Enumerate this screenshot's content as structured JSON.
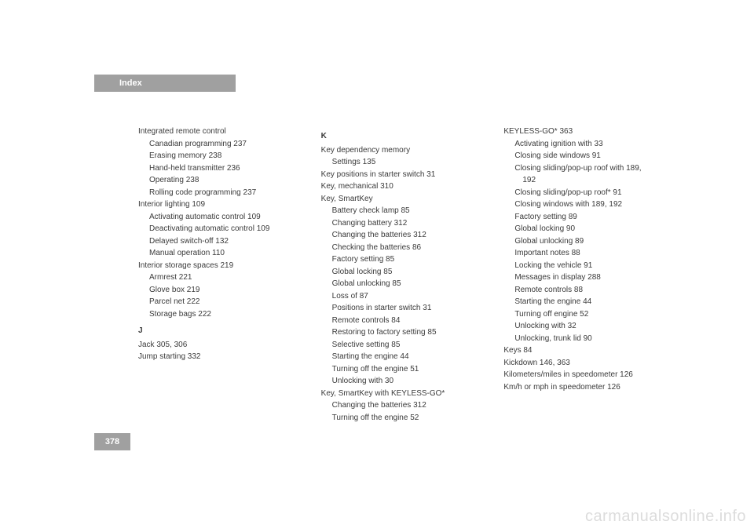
{
  "header": {
    "label": "Index"
  },
  "page_number": "378",
  "watermark": "carmanualsonline.info",
  "col1": [
    {
      "cls": "entry",
      "t": "Integrated remote control"
    },
    {
      "cls": "sub",
      "t": "Canadian programming 237"
    },
    {
      "cls": "sub",
      "t": "Erasing memory 238"
    },
    {
      "cls": "sub",
      "t": "Hand-held transmitter 236"
    },
    {
      "cls": "sub",
      "t": "Operating 238"
    },
    {
      "cls": "sub",
      "t": "Rolling code programming 237"
    },
    {
      "cls": "entry",
      "t": "Interior lighting 109"
    },
    {
      "cls": "sub",
      "t": "Activating automatic control 109"
    },
    {
      "cls": "sub",
      "t": "Deactivating automatic control 109"
    },
    {
      "cls": "sub",
      "t": "Delayed switch-off 132"
    },
    {
      "cls": "sub",
      "t": "Manual operation 110"
    },
    {
      "cls": "entry",
      "t": "Interior storage spaces 219"
    },
    {
      "cls": "sub",
      "t": "Armrest 221"
    },
    {
      "cls": "sub",
      "t": "Glove box 219"
    },
    {
      "cls": "sub",
      "t": "Parcel net 222"
    },
    {
      "cls": "sub",
      "t": "Storage bags 222"
    },
    {
      "cls": "letter",
      "t": "J"
    },
    {
      "cls": "entry",
      "t": "Jack 305, 306"
    },
    {
      "cls": "entry",
      "t": "Jump starting 332"
    }
  ],
  "col2": [
    {
      "cls": "letter",
      "t": "K"
    },
    {
      "cls": "entry",
      "t": "Key dependency memory"
    },
    {
      "cls": "sub",
      "t": "Settings 135"
    },
    {
      "cls": "entry",
      "t": "Key positions in starter switch 31"
    },
    {
      "cls": "entry",
      "t": "Key, mechanical 310"
    },
    {
      "cls": "entry",
      "t": "Key, SmartKey"
    },
    {
      "cls": "sub",
      "t": "Battery check lamp 85"
    },
    {
      "cls": "sub",
      "t": "Changing battery 312"
    },
    {
      "cls": "sub",
      "t": "Changing the batteries 312"
    },
    {
      "cls": "sub",
      "t": "Checking the batteries 86"
    },
    {
      "cls": "sub",
      "t": "Factory setting 85"
    },
    {
      "cls": "sub",
      "t": "Global locking 85"
    },
    {
      "cls": "sub",
      "t": "Global unlocking 85"
    },
    {
      "cls": "sub",
      "t": "Loss of 87"
    },
    {
      "cls": "sub",
      "t": "Positions in starter switch 31"
    },
    {
      "cls": "sub",
      "t": "Remote controls 84"
    },
    {
      "cls": "sub",
      "t": "Restoring to factory setting 85"
    },
    {
      "cls": "sub",
      "t": "Selective setting 85"
    },
    {
      "cls": "sub",
      "t": "Starting the engine 44"
    },
    {
      "cls": "sub",
      "t": "Turning off the engine 51"
    },
    {
      "cls": "sub",
      "t": "Unlocking with 30"
    },
    {
      "cls": "entry",
      "t": "Key, SmartKey with KEYLESS-GO*"
    },
    {
      "cls": "sub",
      "t": "Changing the batteries 312"
    },
    {
      "cls": "sub",
      "t": "Turning off the engine 52"
    }
  ],
  "col3": [
    {
      "cls": "entry",
      "t": "KEYLESS-GO* 363"
    },
    {
      "cls": "sub",
      "t": "Activating ignition with 33"
    },
    {
      "cls": "sub",
      "t": "Closing side windows 91"
    },
    {
      "cls": "sub",
      "t": "Closing sliding/pop-up roof with 189,"
    },
    {
      "cls": "subsub",
      "t": "192"
    },
    {
      "cls": "sub",
      "t": "Closing sliding/pop-up roof* 91"
    },
    {
      "cls": "sub",
      "t": "Closing windows with 189, 192"
    },
    {
      "cls": "sub",
      "t": "Factory setting 89"
    },
    {
      "cls": "sub",
      "t": "Global locking 90"
    },
    {
      "cls": "sub",
      "t": "Global unlocking 89"
    },
    {
      "cls": "sub",
      "t": "Important notes 88"
    },
    {
      "cls": "sub",
      "t": "Locking the vehicle 91"
    },
    {
      "cls": "sub",
      "t": "Messages in display 288"
    },
    {
      "cls": "sub",
      "t": "Remote controls 88"
    },
    {
      "cls": "sub",
      "t": "Starting the engine 44"
    },
    {
      "cls": "sub",
      "t": "Turning off engine 52"
    },
    {
      "cls": "sub",
      "t": "Unlocking with 32"
    },
    {
      "cls": "sub",
      "t": "Unlocking, trunk lid 90"
    },
    {
      "cls": "entry",
      "t": "Keys 84"
    },
    {
      "cls": "entry",
      "t": "Kickdown 146, 363"
    },
    {
      "cls": "entry",
      "t": "Kilometers/miles in speedometer 126"
    },
    {
      "cls": "entry",
      "t": "Km/h or mph in speedometer 126"
    }
  ]
}
